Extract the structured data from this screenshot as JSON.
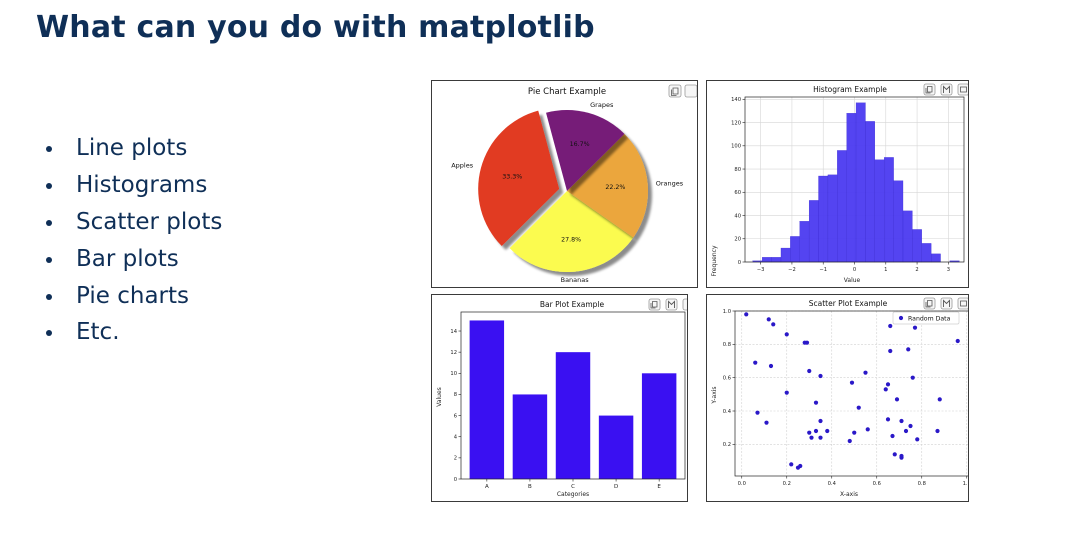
{
  "slide": {
    "title": "What can you do with matplotlib",
    "bullets": [
      "Line plots",
      "Histograms",
      "Scatter plots",
      "Bar plots",
      "Pie charts",
      "Etc."
    ]
  },
  "chart_data": [
    {
      "type": "pie",
      "title": "Pie Chart Example",
      "labels": [
        "Apples",
        "Bananas",
        "Oranges",
        "Grapes"
      ],
      "values": [
        33.3,
        27.8,
        22.2,
        16.7
      ],
      "pct_labels": [
        "33.3%",
        "27.8%",
        "22.2%",
        "16.7%"
      ],
      "colors": [
        "#e13a22",
        "#fbfb50",
        "#eba63c",
        "#761a78"
      ],
      "explode": [
        0.1,
        0,
        0,
        0
      ],
      "shadow": true
    },
    {
      "type": "bar",
      "title": "Histogram Example",
      "xlabel": "Value",
      "ylabel": "Frequency",
      "bin_edges": [
        -3.25,
        -2.95,
        -2.65,
        -2.35,
        -2.05,
        -1.75,
        -1.45,
        -1.15,
        -0.85,
        -0.55,
        -0.25,
        0.05,
        0.35,
        0.65,
        0.95,
        1.25,
        1.55,
        1.85,
        2.15,
        2.45,
        2.75,
        3.05,
        3.35
      ],
      "counts": [
        1,
        4,
        4,
        12,
        22,
        35,
        53,
        74,
        75,
        96,
        128,
        137,
        121,
        88,
        90,
        70,
        44,
        28,
        16,
        7,
        0,
        1
      ],
      "xticks": [
        "−3",
        "−2",
        "−1",
        "0",
        "1",
        "2",
        "3"
      ],
      "yticks": [
        "0",
        "20",
        "40",
        "60",
        "80",
        "100",
        "120",
        "140"
      ],
      "xlim": [
        -3.5,
        3.5
      ],
      "ylim": [
        0,
        142
      ],
      "grid": true,
      "color": "#4b3af0"
    },
    {
      "type": "bar",
      "title": "Bar Plot Example",
      "xlabel": "Categories",
      "ylabel": "Values",
      "categories": [
        "A",
        "B",
        "C",
        "D",
        "E"
      ],
      "values": [
        15,
        8,
        12,
        6,
        10
      ],
      "yticks": [
        "0",
        "2",
        "4",
        "6",
        "8",
        "10",
        "12",
        "14"
      ],
      "ylim": [
        0,
        15.8
      ],
      "color": "#3a10f2"
    },
    {
      "type": "scatter",
      "title": "Scatter Plot Example",
      "xlabel": "X-axis",
      "ylabel": "Y-axis",
      "legend": "Random Data",
      "legend_position": "top-right",
      "xticks": [
        "0.0",
        "0.2",
        "0.4",
        "0.6",
        "0.8",
        "1.0"
      ],
      "yticks": [
        "0.2",
        "0.4",
        "0.6",
        "0.8",
        "1.0"
      ],
      "xlim": [
        -0.03,
        1.01
      ],
      "ylim": [
        0.01,
        1.0
      ],
      "grid": true,
      "color": "#2a18c8",
      "points": [
        [
          0.02,
          0.98
        ],
        [
          0.06,
          0.69
        ],
        [
          0.07,
          0.39
        ],
        [
          0.11,
          0.33
        ],
        [
          0.12,
          0.95
        ],
        [
          0.13,
          0.67
        ],
        [
          0.14,
          0.92
        ],
        [
          0.2,
          0.86
        ],
        [
          0.2,
          0.51
        ],
        [
          0.22,
          0.08
        ],
        [
          0.25,
          0.06
        ],
        [
          0.26,
          0.07
        ],
        [
          0.28,
          0.81
        ],
        [
          0.29,
          0.81
        ],
        [
          0.3,
          0.64
        ],
        [
          0.3,
          0.27
        ],
        [
          0.31,
          0.24
        ],
        [
          0.33,
          0.45
        ],
        [
          0.33,
          0.28
        ],
        [
          0.35,
          0.61
        ],
        [
          0.35,
          0.34
        ],
        [
          0.35,
          0.24
        ],
        [
          0.38,
          0.28
        ],
        [
          0.48,
          0.22
        ],
        [
          0.49,
          0.57
        ],
        [
          0.5,
          0.27
        ],
        [
          0.52,
          0.42
        ],
        [
          0.55,
          0.63
        ],
        [
          0.56,
          0.29
        ],
        [
          0.64,
          0.53
        ],
        [
          0.65,
          0.56
        ],
        [
          0.65,
          0.35
        ],
        [
          0.66,
          0.91
        ],
        [
          0.66,
          0.76
        ],
        [
          0.67,
          0.25
        ],
        [
          0.68,
          0.14
        ],
        [
          0.69,
          0.47
        ],
        [
          0.71,
          0.13
        ],
        [
          0.71,
          0.12
        ],
        [
          0.71,
          0.34
        ],
        [
          0.73,
          0.28
        ],
        [
          0.74,
          0.77
        ],
        [
          0.75,
          0.31
        ],
        [
          0.76,
          0.6
        ],
        [
          0.77,
          0.9
        ],
        [
          0.78,
          0.23
        ],
        [
          0.87,
          0.28
        ],
        [
          0.88,
          0.47
        ],
        [
          0.96,
          0.82
        ]
      ]
    }
  ]
}
